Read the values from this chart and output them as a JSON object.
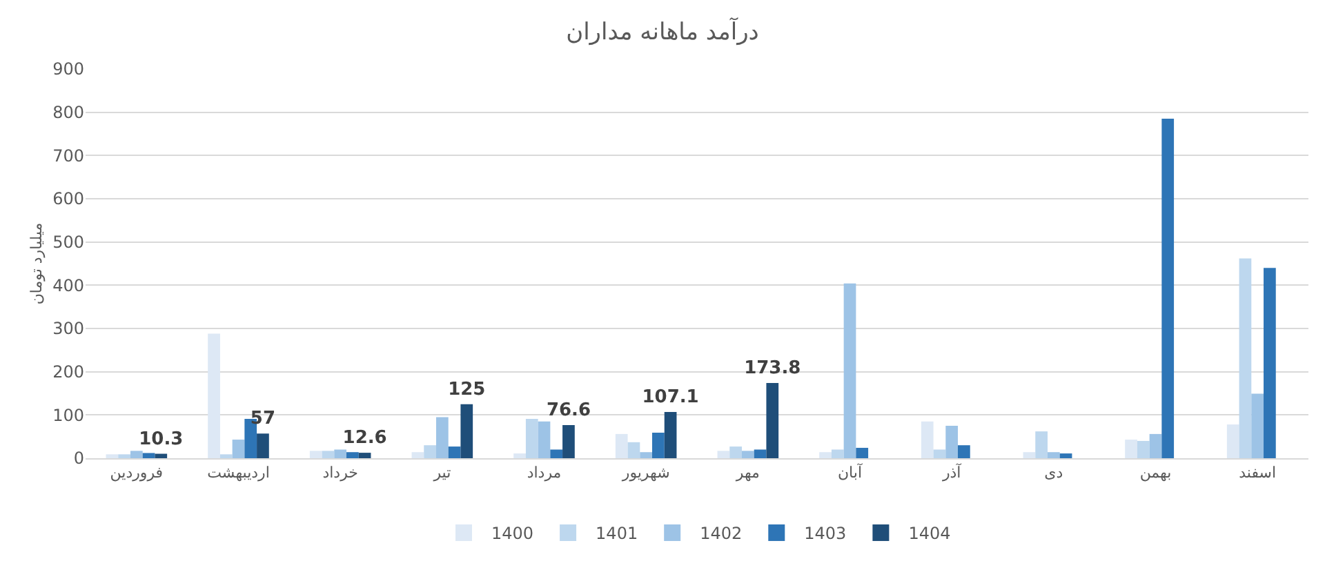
{
  "chart_data": {
    "type": "bar",
    "title": "درآمد ماهانه مداران",
    "ylabel": "میلیارد تومان",
    "categories": [
      "فروردین",
      "اردیبهشت",
      "خرداد",
      "تیر",
      "مرداد",
      "شهریور",
      "مهر",
      "آبان",
      "آذر",
      "دی",
      "بهمن",
      "اسفند"
    ],
    "series": [
      {
        "name": "1400",
        "color": "#dde8f5",
        "values": [
          9,
          288,
          17,
          14,
          11,
          56,
          17,
          14,
          85,
          14,
          43,
          78
        ]
      },
      {
        "name": "1401",
        "color": "#bdd7ee",
        "values": [
          9,
          9,
          17,
          30,
          91,
          37,
          27,
          20,
          20,
          62,
          40,
          462
        ]
      },
      {
        "name": "1402",
        "color": "#9dc3e6",
        "values": [
          17,
          43,
          20,
          95,
          85,
          14,
          17,
          404,
          75,
          14,
          56,
          149
        ]
      },
      {
        "name": "1403",
        "color": "#2e75b6",
        "values": [
          12,
          91,
          14,
          27,
          20,
          59,
          20,
          24,
          30,
          11,
          785,
          440
        ]
      },
      {
        "name": "1404",
        "color": "#1f4e79",
        "values": [
          10.3,
          57,
          12.6,
          125,
          76.6,
          107.1,
          173.8,
          null,
          null,
          null,
          null,
          null
        ],
        "value_labels": [
          "10.3",
          "57",
          "12.6",
          "125",
          "76.6",
          "107.1",
          "173.8",
          null,
          null,
          null,
          null,
          null
        ]
      }
    ],
    "ylim": [
      0,
      900
    ],
    "yticks": [
      0,
      100,
      200,
      300,
      400,
      500,
      600,
      700,
      800,
      900
    ],
    "grid": "y",
    "legend": "bottom"
  }
}
